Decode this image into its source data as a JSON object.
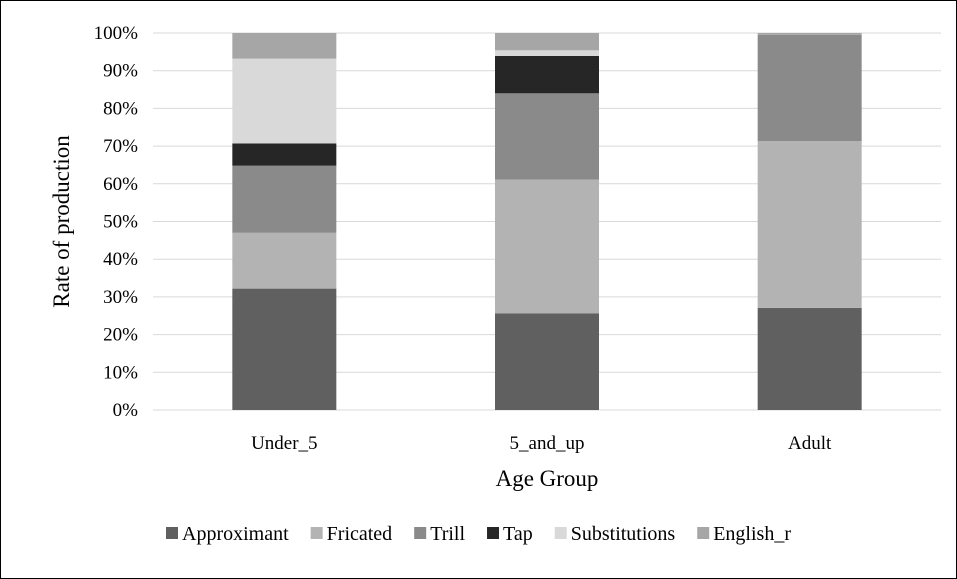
{
  "chart_data": {
    "type": "bar",
    "stacked": true,
    "percent": true,
    "categories": [
      "Under_5",
      "5_and_up",
      "Adult"
    ],
    "series": [
      {
        "name": "Approximant",
        "color": "#606060",
        "values": [
          32.2,
          25.6,
          27.1
        ]
      },
      {
        "name": "Fricated",
        "color": "#b3b3b3",
        "values": [
          14.8,
          35.5,
          44.2
        ]
      },
      {
        "name": "Trill",
        "color": "#8a8a8a",
        "values": [
          17.8,
          22.9,
          28.2
        ]
      },
      {
        "name": "Tap",
        "color": "#262626",
        "values": [
          5.9,
          9.9,
          0
        ]
      },
      {
        "name": "Substitutions",
        "color": "#d9d9d9",
        "values": [
          22.5,
          1.5,
          0
        ]
      },
      {
        "name": "English_r",
        "color": "#a6a6a6",
        "values": [
          6.8,
          4.6,
          0.5
        ]
      }
    ],
    "yticks": [
      "0%",
      "10%",
      "20%",
      "30%",
      "40%",
      "50%",
      "60%",
      "70%",
      "80%",
      "90%",
      "100%"
    ],
    "ylim": [
      0,
      100
    ],
    "xlabel": "Age Group",
    "ylabel": "Rate of production",
    "grid": true,
    "legend": "bottom"
  }
}
